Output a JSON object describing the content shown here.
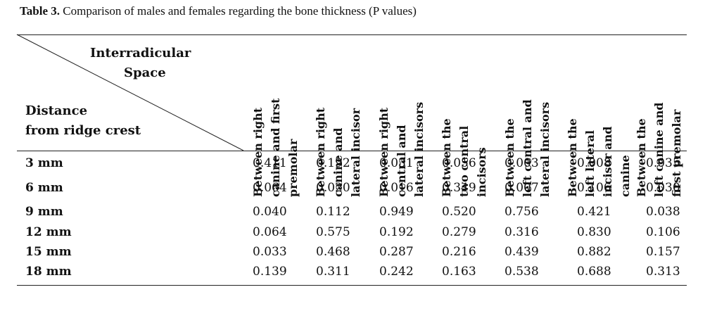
{
  "caption": {
    "label": "Table 3.",
    "text": "Comparison of males and females regarding the bone thickness (P values)"
  },
  "corner": {
    "top_line1": "Interradicular",
    "top_line2": "Space",
    "bottom_line1": "Distance",
    "bottom_line2": "from ridge crest"
  },
  "columns": [
    {
      "lines": [
        "Between right",
        "canine and first",
        "premolar"
      ]
    },
    {
      "lines": [
        "Between right",
        "canine and",
        "lateral incisor"
      ]
    },
    {
      "lines": [
        "Between right",
        "central and",
        "lateral incisors"
      ]
    },
    {
      "lines": [
        "Between the",
        "two central",
        "incisors"
      ]
    },
    {
      "lines": [
        "Between the",
        "left central and",
        "lateral incisors"
      ]
    },
    {
      "lines": [
        "Between the",
        "left lateral",
        "incisor and",
        "canine"
      ]
    },
    {
      "lines": [
        "Between the",
        "left canine and",
        "first premolar"
      ]
    }
  ],
  "rows": [
    {
      "label": "3 mm",
      "values": [
        "0.411",
        "0.192",
        "0.031",
        "0.056",
        "0.003",
        "0.008",
        "0.035"
      ]
    },
    {
      "label": "6 mm",
      "values": [
        "0.064",
        "0.020",
        "0.016",
        "0.349",
        "0.007",
        "0.106",
        "0.030"
      ]
    },
    {
      "label": "9 mm",
      "values": [
        "0.040",
        "0.112",
        "0.949",
        "0.520",
        "0.756",
        "0.421",
        "0.038"
      ]
    },
    {
      "label": "12 mm",
      "values": [
        "0.064",
        "0.575",
        "0.192",
        "0.279",
        "0.316",
        "0.830",
        "0.106"
      ]
    },
    {
      "label": "15 mm",
      "values": [
        "0.033",
        "0.468",
        "0.287",
        "0.216",
        "0.439",
        "0.882",
        "0.157"
      ]
    },
    {
      "label": "18 mm",
      "values": [
        "0.139",
        "0.311",
        "0.242",
        "0.163",
        "0.538",
        "0.688",
        "0.313"
      ]
    }
  ]
}
